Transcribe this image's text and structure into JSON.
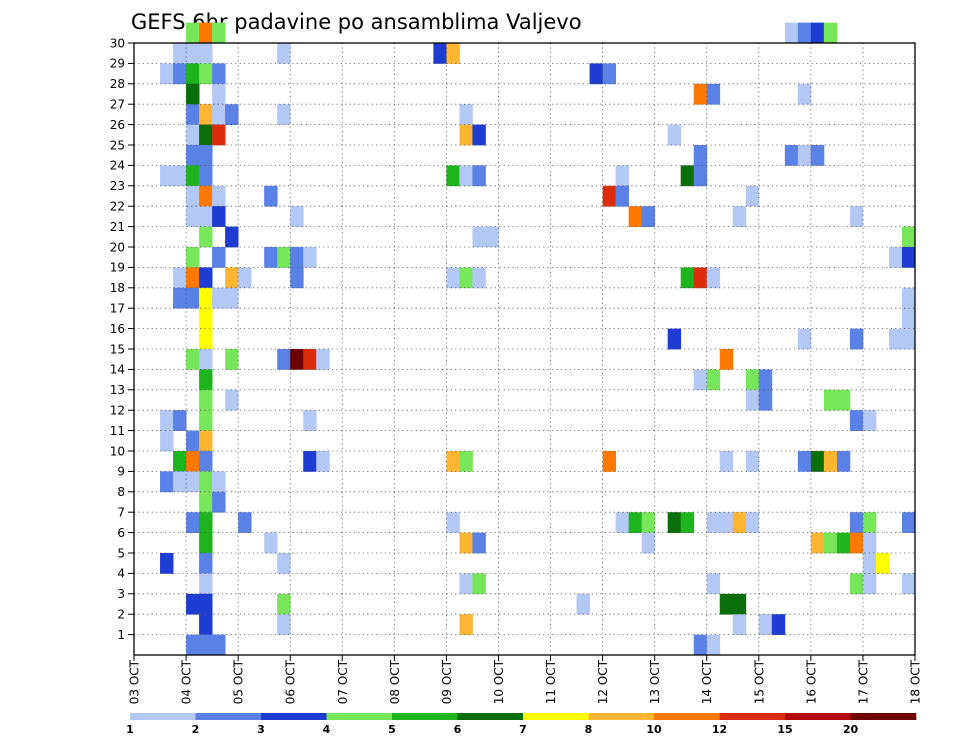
{
  "chart_data": {
    "type": "heatmap",
    "title": "GEFS 6hr padavine po ansamblima Valjevo",
    "xlabel": "",
    "ylabel": "",
    "x_tick_labels": [
      "03 OCT",
      "04 OCT",
      "05 OCT",
      "06 OCT",
      "07 OCT",
      "08 OCT",
      "09 OCT",
      "10 OCT",
      "11 OCT",
      "12 OCT",
      "13 OCT",
      "14 OCT",
      "15 OCT",
      "16 OCT",
      "17 OCT",
      "18 OCT"
    ],
    "y_tick_labels": [
      "1",
      "2",
      "3",
      "4",
      "5",
      "6",
      "7",
      "8",
      "9",
      "10",
      "11",
      "12",
      "13",
      "14",
      "15",
      "16",
      "17",
      "18",
      "19",
      "20",
      "21",
      "22",
      "23",
      "24",
      "25",
      "26",
      "27",
      "28",
      "29",
      "30"
    ],
    "grid": true,
    "legend": {
      "placement": "bottom",
      "labels": [
        "1",
        "2",
        "3",
        "4",
        "5",
        "6",
        "7",
        "8",
        "10",
        "12",
        "15",
        "20"
      ],
      "colors": [
        "#b4c8f5",
        "#5a82e6",
        "#1e3cd2",
        "#78e65a",
        "#1eb41e",
        "#0a6e0a",
        "#ffff00",
        "#ffb432",
        "#ff7800",
        "#dc2d0a",
        "#b40a0a",
        "#6e0000"
      ]
    },
    "value_levels": [
      1,
      2,
      3,
      4,
      5,
      6,
      7,
      8,
      10,
      12,
      15,
      20
    ],
    "cells": [
      [
        4.0,
        30,
        4
      ],
      [
        4.25,
        30,
        10
      ],
      [
        4.5,
        30,
        4
      ],
      [
        15.5,
        30,
        1
      ],
      [
        15.75,
        30,
        2
      ],
      [
        16.0,
        30,
        3
      ],
      [
        16.25,
        30,
        4
      ],
      [
        3.75,
        29,
        1
      ],
      [
        4.0,
        29,
        1
      ],
      [
        4.25,
        29,
        1
      ],
      [
        5.75,
        29,
        1
      ],
      [
        8.75,
        29,
        3
      ],
      [
        9.0,
        29,
        8
      ],
      [
        3.5,
        28,
        1
      ],
      [
        3.75,
        28,
        2
      ],
      [
        4.0,
        28,
        5
      ],
      [
        4.25,
        28,
        4
      ],
      [
        4.5,
        28,
        2
      ],
      [
        11.75,
        28,
        3
      ],
      [
        12.0,
        28,
        2
      ],
      [
        4.0,
        27,
        6
      ],
      [
        4.5,
        27,
        1
      ],
      [
        13.75,
        27,
        10
      ],
      [
        14.0,
        27,
        2
      ],
      [
        15.75,
        27,
        1
      ],
      [
        4.0,
        26,
        2
      ],
      [
        4.25,
        26,
        8
      ],
      [
        4.5,
        26,
        1
      ],
      [
        4.75,
        26,
        2
      ],
      [
        5.75,
        26,
        1
      ],
      [
        9.25,
        26,
        1
      ],
      [
        4.0,
        25,
        1
      ],
      [
        4.25,
        25,
        6
      ],
      [
        4.5,
        25,
        12
      ],
      [
        9.25,
        25,
        8
      ],
      [
        9.5,
        25,
        3
      ],
      [
        13.25,
        25,
        1
      ],
      [
        4.0,
        24,
        2
      ],
      [
        4.25,
        24,
        2
      ],
      [
        13.75,
        24,
        2
      ],
      [
        15.5,
        24,
        2
      ],
      [
        15.75,
        24,
        1
      ],
      [
        16.0,
        24,
        2
      ],
      [
        3.5,
        23,
        1
      ],
      [
        3.75,
        23,
        1
      ],
      [
        4.0,
        23,
        5
      ],
      [
        4.25,
        23,
        2
      ],
      [
        9.0,
        23,
        5
      ],
      [
        9.25,
        23,
        1
      ],
      [
        9.5,
        23,
        2
      ],
      [
        12.25,
        23,
        1
      ],
      [
        13.5,
        23,
        6
      ],
      [
        13.75,
        23,
        2
      ],
      [
        4.0,
        22,
        1
      ],
      [
        4.25,
        22,
        10
      ],
      [
        4.5,
        22,
        1
      ],
      [
        5.5,
        22,
        2
      ],
      [
        12.0,
        22,
        12
      ],
      [
        12.25,
        22,
        2
      ],
      [
        14.75,
        22,
        1
      ],
      [
        4.0,
        21,
        1
      ],
      [
        4.25,
        21,
        1
      ],
      [
        4.5,
        21,
        3
      ],
      [
        6.0,
        21,
        1
      ],
      [
        12.5,
        21,
        10
      ],
      [
        12.75,
        21,
        2
      ],
      [
        14.5,
        21,
        1
      ],
      [
        16.75,
        21,
        1
      ],
      [
        4.25,
        20,
        4
      ],
      [
        4.75,
        20,
        3
      ],
      [
        9.5,
        20,
        1
      ],
      [
        9.75,
        20,
        1
      ],
      [
        17.75,
        20,
        4
      ],
      [
        4.0,
        19,
        4
      ],
      [
        4.5,
        19,
        2
      ],
      [
        5.5,
        19,
        2
      ],
      [
        5.75,
        19,
        4
      ],
      [
        6.0,
        19,
        2
      ],
      [
        6.25,
        19,
        1
      ],
      [
        17.5,
        19,
        1
      ],
      [
        17.75,
        19,
        3
      ],
      [
        3.75,
        18,
        1
      ],
      [
        4.0,
        18,
        10
      ],
      [
        4.25,
        18,
        3
      ],
      [
        4.75,
        18,
        8
      ],
      [
        5.0,
        18,
        1
      ],
      [
        6.0,
        18,
        2
      ],
      [
        9.0,
        18,
        1
      ],
      [
        9.25,
        18,
        4
      ],
      [
        9.5,
        18,
        1
      ],
      [
        13.5,
        18,
        5
      ],
      [
        13.75,
        18,
        12
      ],
      [
        14.0,
        18,
        1
      ],
      [
        3.75,
        17,
        2
      ],
      [
        4.0,
        17,
        2
      ],
      [
        4.25,
        17,
        7
      ],
      [
        4.5,
        17,
        1
      ],
      [
        4.75,
        17,
        1
      ],
      [
        17.75,
        17,
        1
      ],
      [
        4.25,
        16,
        7
      ],
      [
        17.75,
        16,
        1
      ],
      [
        4.25,
        15,
        7
      ],
      [
        13.25,
        15,
        3
      ],
      [
        15.75,
        15,
        1
      ],
      [
        16.75,
        15,
        2
      ],
      [
        17.5,
        15,
        1
      ],
      [
        17.75,
        15,
        1
      ],
      [
        4.0,
        14,
        4
      ],
      [
        4.25,
        14,
        1
      ],
      [
        4.75,
        14,
        4
      ],
      [
        5.75,
        14,
        2
      ],
      [
        6.0,
        14,
        20
      ],
      [
        6.25,
        14,
        12
      ],
      [
        6.5,
        14,
        1
      ],
      [
        14.25,
        14,
        10
      ],
      [
        4.25,
        13,
        5
      ],
      [
        13.75,
        13,
        1
      ],
      [
        14.0,
        13,
        4
      ],
      [
        14.75,
        13,
        4
      ],
      [
        15.0,
        13,
        2
      ],
      [
        4.25,
        12,
        4
      ],
      [
        4.75,
        12,
        1
      ],
      [
        14.75,
        12,
        1
      ],
      [
        15.0,
        12,
        2
      ],
      [
        16.25,
        12,
        4
      ],
      [
        16.5,
        12,
        4
      ],
      [
        3.5,
        11,
        1
      ],
      [
        3.75,
        11,
        2
      ],
      [
        4.25,
        11,
        4
      ],
      [
        6.25,
        11,
        1
      ],
      [
        16.75,
        11,
        2
      ],
      [
        17.0,
        11,
        1
      ],
      [
        3.5,
        10,
        1
      ],
      [
        4.0,
        10,
        2
      ],
      [
        4.25,
        10,
        8
      ],
      [
        3.75,
        9,
        5
      ],
      [
        4.0,
        9,
        10
      ],
      [
        4.25,
        9,
        2
      ],
      [
        6.25,
        9,
        3
      ],
      [
        6.5,
        9,
        1
      ],
      [
        9.0,
        9,
        8
      ],
      [
        9.25,
        9,
        4
      ],
      [
        12.0,
        9,
        10
      ],
      [
        14.25,
        9,
        1
      ],
      [
        14.75,
        9,
        1
      ],
      [
        15.75,
        9,
        2
      ],
      [
        16.0,
        9,
        6
      ],
      [
        16.25,
        9,
        8
      ],
      [
        16.5,
        9,
        2
      ],
      [
        3.5,
        8,
        2
      ],
      [
        3.75,
        8,
        1
      ],
      [
        4.0,
        8,
        1
      ],
      [
        4.25,
        8,
        4
      ],
      [
        4.5,
        8,
        1
      ],
      [
        4.25,
        7,
        4
      ],
      [
        4.5,
        7,
        2
      ],
      [
        4.0,
        6,
        2
      ],
      [
        4.25,
        6,
        5
      ],
      [
        5.0,
        6,
        2
      ],
      [
        9.0,
        6,
        1
      ],
      [
        12.25,
        6,
        1
      ],
      [
        12.5,
        6,
        5
      ],
      [
        12.75,
        6,
        4
      ],
      [
        13.25,
        6,
        6
      ],
      [
        13.5,
        6,
        5
      ],
      [
        14.0,
        6,
        1
      ],
      [
        14.25,
        6,
        1
      ],
      [
        14.5,
        6,
        8
      ],
      [
        14.75,
        6,
        1
      ],
      [
        16.75,
        6,
        2
      ],
      [
        17.0,
        6,
        4
      ],
      [
        17.75,
        6,
        2
      ],
      [
        4.25,
        5,
        5
      ],
      [
        5.5,
        5,
        1
      ],
      [
        9.25,
        5,
        8
      ],
      [
        9.5,
        5,
        2
      ],
      [
        12.75,
        5,
        1
      ],
      [
        16.0,
        5,
        8
      ],
      [
        16.25,
        5,
        4
      ],
      [
        16.5,
        5,
        5
      ],
      [
        16.75,
        5,
        10
      ],
      [
        17.0,
        5,
        1
      ],
      [
        3.5,
        4,
        3
      ],
      [
        4.25,
        4,
        2
      ],
      [
        5.75,
        4,
        1
      ],
      [
        17.0,
        4,
        1
      ],
      [
        17.25,
        4,
        7
      ],
      [
        4.25,
        3,
        1
      ],
      [
        9.25,
        3,
        1
      ],
      [
        9.5,
        3,
        4
      ],
      [
        14.0,
        3,
        1
      ],
      [
        16.75,
        3,
        4
      ],
      [
        17.0,
        3,
        1
      ],
      [
        17.75,
        3,
        1
      ],
      [
        4.0,
        2,
        3
      ],
      [
        4.25,
        2,
        3
      ],
      [
        5.75,
        2,
        4
      ],
      [
        11.5,
        2,
        1
      ],
      [
        14.25,
        2,
        6
      ],
      [
        14.5,
        2,
        6
      ],
      [
        4.25,
        1,
        3
      ],
      [
        5.75,
        1,
        1
      ],
      [
        9.25,
        1,
        8
      ],
      [
        14.5,
        1,
        1
      ],
      [
        15.0,
        1,
        1
      ],
      [
        15.25,
        1,
        3
      ],
      [
        4.0,
        0,
        2
      ],
      [
        4.25,
        0,
        2
      ],
      [
        4.5,
        0,
        2
      ],
      [
        13.75,
        0,
        2
      ],
      [
        14.0,
        0,
        1
      ]
    ]
  }
}
